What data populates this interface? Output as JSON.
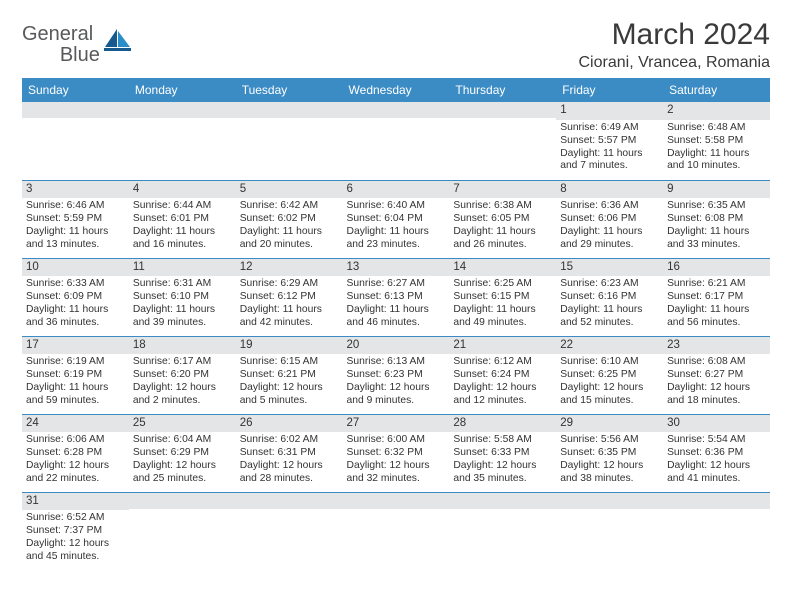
{
  "logo": {
    "general": "General",
    "blue": "Blue"
  },
  "title": "March 2024",
  "location": "Ciorani, Vrancea, Romania",
  "colors": {
    "header_bg": "#3b8bc5",
    "header_fg": "#ffffff",
    "daynum_bg": "#e4e5e6",
    "border": "#3b8bc5",
    "text": "#333333",
    "logo_gray": "#58595b",
    "logo_blue": "#1f7dc1"
  },
  "day_headers": [
    "Sunday",
    "Monday",
    "Tuesday",
    "Wednesday",
    "Thursday",
    "Friday",
    "Saturday"
  ],
  "weeks": [
    [
      null,
      null,
      null,
      null,
      null,
      {
        "d": "1",
        "sr": "6:49 AM",
        "ss": "5:57 PM",
        "dl": "11 hours and 7 minutes."
      },
      {
        "d": "2",
        "sr": "6:48 AM",
        "ss": "5:58 PM",
        "dl": "11 hours and 10 minutes."
      }
    ],
    [
      {
        "d": "3",
        "sr": "6:46 AM",
        "ss": "5:59 PM",
        "dl": "11 hours and 13 minutes."
      },
      {
        "d": "4",
        "sr": "6:44 AM",
        "ss": "6:01 PM",
        "dl": "11 hours and 16 minutes."
      },
      {
        "d": "5",
        "sr": "6:42 AM",
        "ss": "6:02 PM",
        "dl": "11 hours and 20 minutes."
      },
      {
        "d": "6",
        "sr": "6:40 AM",
        "ss": "6:04 PM",
        "dl": "11 hours and 23 minutes."
      },
      {
        "d": "7",
        "sr": "6:38 AM",
        "ss": "6:05 PM",
        "dl": "11 hours and 26 minutes."
      },
      {
        "d": "8",
        "sr": "6:36 AM",
        "ss": "6:06 PM",
        "dl": "11 hours and 29 minutes."
      },
      {
        "d": "9",
        "sr": "6:35 AM",
        "ss": "6:08 PM",
        "dl": "11 hours and 33 minutes."
      }
    ],
    [
      {
        "d": "10",
        "sr": "6:33 AM",
        "ss": "6:09 PM",
        "dl": "11 hours and 36 minutes."
      },
      {
        "d": "11",
        "sr": "6:31 AM",
        "ss": "6:10 PM",
        "dl": "11 hours and 39 minutes."
      },
      {
        "d": "12",
        "sr": "6:29 AM",
        "ss": "6:12 PM",
        "dl": "11 hours and 42 minutes."
      },
      {
        "d": "13",
        "sr": "6:27 AM",
        "ss": "6:13 PM",
        "dl": "11 hours and 46 minutes."
      },
      {
        "d": "14",
        "sr": "6:25 AM",
        "ss": "6:15 PM",
        "dl": "11 hours and 49 minutes."
      },
      {
        "d": "15",
        "sr": "6:23 AM",
        "ss": "6:16 PM",
        "dl": "11 hours and 52 minutes."
      },
      {
        "d": "16",
        "sr": "6:21 AM",
        "ss": "6:17 PM",
        "dl": "11 hours and 56 minutes."
      }
    ],
    [
      {
        "d": "17",
        "sr": "6:19 AM",
        "ss": "6:19 PM",
        "dl": "11 hours and 59 minutes."
      },
      {
        "d": "18",
        "sr": "6:17 AM",
        "ss": "6:20 PM",
        "dl": "12 hours and 2 minutes."
      },
      {
        "d": "19",
        "sr": "6:15 AM",
        "ss": "6:21 PM",
        "dl": "12 hours and 5 minutes."
      },
      {
        "d": "20",
        "sr": "6:13 AM",
        "ss": "6:23 PM",
        "dl": "12 hours and 9 minutes."
      },
      {
        "d": "21",
        "sr": "6:12 AM",
        "ss": "6:24 PM",
        "dl": "12 hours and 12 minutes."
      },
      {
        "d": "22",
        "sr": "6:10 AM",
        "ss": "6:25 PM",
        "dl": "12 hours and 15 minutes."
      },
      {
        "d": "23",
        "sr": "6:08 AM",
        "ss": "6:27 PM",
        "dl": "12 hours and 18 minutes."
      }
    ],
    [
      {
        "d": "24",
        "sr": "6:06 AM",
        "ss": "6:28 PM",
        "dl": "12 hours and 22 minutes."
      },
      {
        "d": "25",
        "sr": "6:04 AM",
        "ss": "6:29 PM",
        "dl": "12 hours and 25 minutes."
      },
      {
        "d": "26",
        "sr": "6:02 AM",
        "ss": "6:31 PM",
        "dl": "12 hours and 28 minutes."
      },
      {
        "d": "27",
        "sr": "6:00 AM",
        "ss": "6:32 PM",
        "dl": "12 hours and 32 minutes."
      },
      {
        "d": "28",
        "sr": "5:58 AM",
        "ss": "6:33 PM",
        "dl": "12 hours and 35 minutes."
      },
      {
        "d": "29",
        "sr": "5:56 AM",
        "ss": "6:35 PM",
        "dl": "12 hours and 38 minutes."
      },
      {
        "d": "30",
        "sr": "5:54 AM",
        "ss": "6:36 PM",
        "dl": "12 hours and 41 minutes."
      }
    ],
    [
      {
        "d": "31",
        "sr": "6:52 AM",
        "ss": "7:37 PM",
        "dl": "12 hours and 45 minutes."
      },
      null,
      null,
      null,
      null,
      null,
      null
    ]
  ],
  "labels": {
    "sunrise": "Sunrise:",
    "sunset": "Sunset:",
    "daylight": "Daylight:"
  }
}
